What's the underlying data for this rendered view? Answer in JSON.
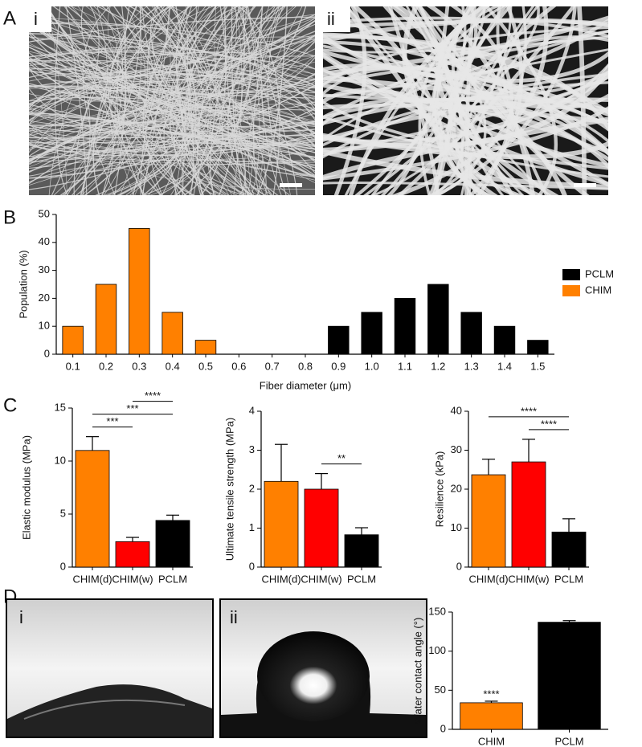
{
  "panels": {
    "A": {
      "letter": "A",
      "images": [
        "i",
        "ii"
      ]
    },
    "B": {
      "letter": "B"
    },
    "C": {
      "letter": "C"
    },
    "D": {
      "letter": "D",
      "images": [
        "i",
        "ii"
      ]
    }
  },
  "chart_data": [
    {
      "type": "bar",
      "categories": [
        "0.1",
        "0.2",
        "0.3",
        "0.4",
        "0.5",
        "0.6",
        "0.7",
        "0.8",
        "0.9",
        "1.0",
        "1.1",
        "1.2",
        "1.3",
        "1.4",
        "1.5"
      ],
      "series": [
        {
          "name": "PCLM",
          "color": "#000000",
          "values": [
            null,
            null,
            null,
            null,
            null,
            null,
            null,
            null,
            10,
            15,
            20,
            25,
            15,
            10,
            5
          ]
        },
        {
          "name": "CHIM",
          "color": "#ff8000",
          "values": [
            10,
            25,
            45,
            15,
            5,
            null,
            null,
            null,
            null,
            null,
            null,
            null,
            null,
            null,
            null
          ]
        }
      ],
      "xlabel": "Fiber diameter (μm)",
      "ylabel": "Population (%)",
      "ylim": [
        0,
        50
      ],
      "yticks": [
        0,
        10,
        20,
        30,
        40,
        50
      ],
      "legend": "right"
    },
    {
      "type": "bar",
      "categories": [
        "CHIM(d)",
        "CHIM(w)",
        "PCLM"
      ],
      "values": [
        11,
        2.4,
        4.4
      ],
      "errors": [
        1.3,
        0.4,
        0.5
      ],
      "colors": [
        "#ff8000",
        "#ff0000",
        "#000000"
      ],
      "ylabel": "Elastic modulus (MPa)",
      "ylim": [
        0,
        15
      ],
      "yticks": [
        0,
        5,
        10,
        15
      ],
      "annotations": [
        {
          "from": 0,
          "to": 1,
          "label": "***"
        },
        {
          "from": 0,
          "to": 2,
          "label": "***"
        },
        {
          "from": 1,
          "to": 2,
          "label": "****"
        }
      ]
    },
    {
      "type": "bar",
      "categories": [
        "CHIM(d)",
        "CHIM(w)",
        "PCLM"
      ],
      "values": [
        2.2,
        2.0,
        0.83
      ],
      "errors": [
        0.95,
        0.4,
        0.18
      ],
      "colors": [
        "#ff8000",
        "#ff0000",
        "#000000"
      ],
      "ylabel": "Ultimate tensile strength (MPa)",
      "ylim": [
        0,
        4
      ],
      "yticks": [
        0,
        1,
        2,
        3,
        4
      ],
      "annotations": [
        {
          "from": 1,
          "to": 2,
          "label": "**"
        }
      ]
    },
    {
      "type": "bar",
      "categories": [
        "CHIM(d)",
        "CHIM(w)",
        "PCLM"
      ],
      "values": [
        23.7,
        27,
        9
      ],
      "errors": [
        4,
        5.8,
        3.4
      ],
      "colors": [
        "#ff8000",
        "#ff0000",
        "#000000"
      ],
      "ylabel": "Resilience (kPa)",
      "ylim": [
        0,
        40
      ],
      "yticks": [
        0,
        10,
        20,
        30,
        40
      ],
      "annotations": [
        {
          "from": 1,
          "to": 2,
          "label": "****"
        },
        {
          "from": 0,
          "to": 2,
          "label": "****"
        }
      ]
    },
    {
      "type": "bar",
      "categories": [
        "CHIM",
        "PCLM"
      ],
      "values": [
        34,
        137
      ],
      "errors": [
        2,
        2
      ],
      "colors": [
        "#ff8000",
        "#000000"
      ],
      "ylabel": "Water contact angle (°)",
      "ylim": [
        0,
        150
      ],
      "yticks": [
        0,
        50,
        100,
        150
      ],
      "annotations": [
        {
          "from": 0,
          "to": 0,
          "label": "****"
        }
      ]
    }
  ]
}
